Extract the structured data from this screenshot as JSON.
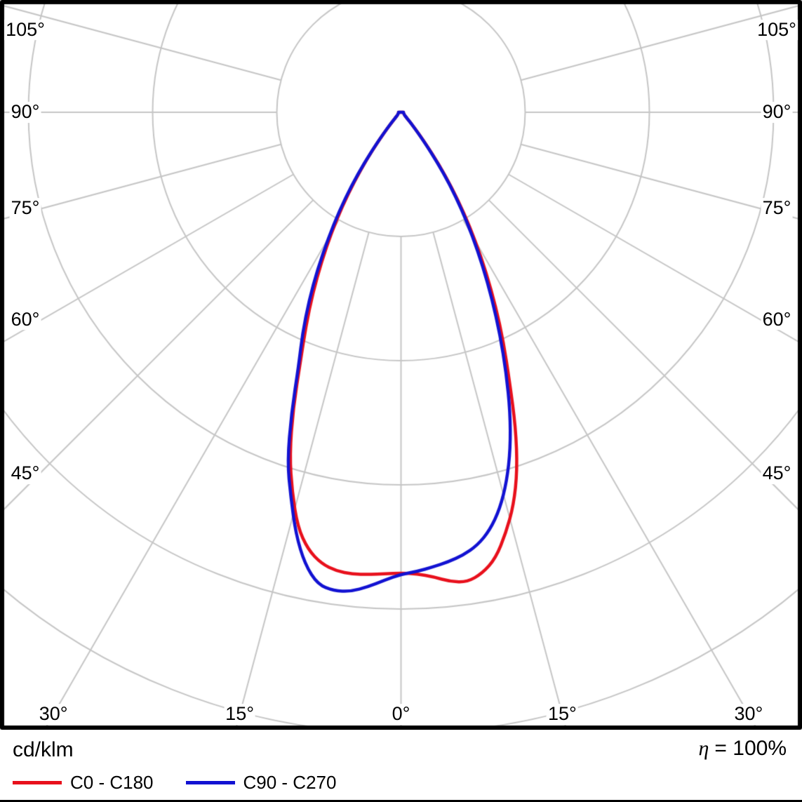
{
  "figure": {
    "unit_label": "cd/klm",
    "eta": {
      "symbol": "η",
      "rest": "= 100%"
    }
  },
  "legend": [
    {
      "label": "C0 - C180",
      "color": "#e8101c"
    },
    {
      "label": "C90 - C270",
      "color": "#1212d2"
    }
  ],
  "chart_data": {
    "type": "polar",
    "subtype": "luminous-intensity-distribution",
    "units": "cd/klm",
    "efficiency": "100%",
    "grid": {
      "color": "#c6c6c6",
      "ring_step_cd_klm": 100,
      "rings": [
        100,
        200,
        300,
        400,
        500
      ],
      "ray_step_deg": 15,
      "max_ray_deg": 105
    },
    "angle_ticks": [
      {
        "text": "105°",
        "gamma": 105,
        "side": "left"
      },
      {
        "text": "90°",
        "gamma": 90,
        "side": "left"
      },
      {
        "text": "75°",
        "gamma": 75,
        "side": "left"
      },
      {
        "text": "60°",
        "gamma": 60,
        "side": "left"
      },
      {
        "text": "45°",
        "gamma": 45,
        "side": "left"
      },
      {
        "text": "30°",
        "gamma": 30,
        "side": "left"
      },
      {
        "text": "15°",
        "gamma": 15,
        "side": "left"
      },
      {
        "text": "0°",
        "gamma": 0,
        "side": "center"
      },
      {
        "text": "15°",
        "gamma": 15,
        "side": "right"
      },
      {
        "text": "30°",
        "gamma": 30,
        "side": "right"
      },
      {
        "text": "45°",
        "gamma": 45,
        "side": "right"
      },
      {
        "text": "60°",
        "gamma": 60,
        "side": "right"
      },
      {
        "text": "75°",
        "gamma": 75,
        "side": "right"
      },
      {
        "text": "90°",
        "gamma": 90,
        "side": "right"
      },
      {
        "text": "105°",
        "gamma": 105,
        "side": "right"
      }
    ],
    "series": [
      {
        "name": "C0 - C180",
        "color": "#e8101c",
        "points": [
          [
            -90,
            2
          ],
          [
            -80,
            2
          ],
          [
            -70,
            2
          ],
          [
            -62,
            3
          ],
          [
            -55,
            3
          ],
          [
            -50,
            4
          ],
          [
            -48,
            5
          ],
          [
            -46,
            6
          ],
          [
            -44,
            8
          ],
          [
            -42,
            11
          ],
          [
            -40,
            18
          ],
          [
            -38,
            30
          ],
          [
            -36,
            47
          ],
          [
            -34,
            67
          ],
          [
            -32,
            89
          ],
          [
            -30,
            112
          ],
          [
            -28,
            136
          ],
          [
            -26,
            162
          ],
          [
            -24,
            188
          ],
          [
            -22,
            216
          ],
          [
            -20,
            254
          ],
          [
            -18,
            290
          ],
          [
            -16,
            318
          ],
          [
            -14,
            344
          ],
          [
            -12,
            360
          ],
          [
            -10,
            369
          ],
          [
            -8,
            373
          ],
          [
            -6,
            374
          ],
          [
            -4,
            373
          ],
          [
            -2,
            372
          ],
          [
            0,
            371
          ],
          [
            2,
            372
          ],
          [
            4,
            375
          ],
          [
            6,
            380
          ],
          [
            8,
            382
          ],
          [
            10,
            377
          ],
          [
            12,
            367
          ],
          [
            14,
            349
          ],
          [
            16,
            329
          ],
          [
            18,
            303
          ],
          [
            20,
            270
          ],
          [
            22,
            233
          ],
          [
            24,
            203
          ],
          [
            26,
            174
          ],
          [
            28,
            146
          ],
          [
            30,
            120
          ],
          [
            32,
            96
          ],
          [
            34,
            73
          ],
          [
            36,
            52
          ],
          [
            38,
            33
          ],
          [
            40,
            20
          ],
          [
            42,
            12
          ],
          [
            44,
            8
          ],
          [
            46,
            6
          ],
          [
            48,
            5
          ],
          [
            50,
            4
          ],
          [
            55,
            3
          ],
          [
            62,
            3
          ],
          [
            70,
            2
          ],
          [
            80,
            2
          ],
          [
            90,
            2
          ]
        ]
      },
      {
        "name": "C90 - C270",
        "color": "#1212d2",
        "points": [
          [
            -90,
            2
          ],
          [
            -80,
            2
          ],
          [
            -70,
            2
          ],
          [
            -62,
            3
          ],
          [
            -55,
            3
          ],
          [
            -50,
            4
          ],
          [
            -48,
            5
          ],
          [
            -46,
            6
          ],
          [
            -44,
            8
          ],
          [
            -42,
            12
          ],
          [
            -40,
            19
          ],
          [
            -38,
            31
          ],
          [
            -36,
            50
          ],
          [
            -34,
            71
          ],
          [
            -32,
            94
          ],
          [
            -30,
            117
          ],
          [
            -28,
            143
          ],
          [
            -26,
            169
          ],
          [
            -24,
            195
          ],
          [
            -22,
            220
          ],
          [
            -20,
            258
          ],
          [
            -18,
            296
          ],
          [
            -16,
            322
          ],
          [
            -14,
            350
          ],
          [
            -12,
            372
          ],
          [
            -10,
            386
          ],
          [
            -8,
            389
          ],
          [
            -6,
            388
          ],
          [
            -4,
            383
          ],
          [
            -2,
            377
          ],
          [
            0,
            372
          ],
          [
            2,
            370
          ],
          [
            4,
            367
          ],
          [
            6,
            364
          ],
          [
            8,
            360
          ],
          [
            10,
            354
          ],
          [
            12,
            344
          ],
          [
            14,
            329
          ],
          [
            16,
            309
          ],
          [
            18,
            285
          ],
          [
            20,
            257
          ],
          [
            22,
            226
          ],
          [
            24,
            196
          ],
          [
            26,
            167
          ],
          [
            28,
            140
          ],
          [
            30,
            115
          ],
          [
            32,
            92
          ],
          [
            34,
            70
          ],
          [
            36,
            49
          ],
          [
            38,
            31
          ],
          [
            40,
            19
          ],
          [
            42,
            12
          ],
          [
            44,
            8
          ],
          [
            46,
            6
          ],
          [
            48,
            5
          ],
          [
            50,
            4
          ],
          [
            55,
            3
          ],
          [
            62,
            3
          ],
          [
            70,
            2
          ],
          [
            80,
            2
          ],
          [
            90,
            2
          ]
        ]
      }
    ]
  }
}
